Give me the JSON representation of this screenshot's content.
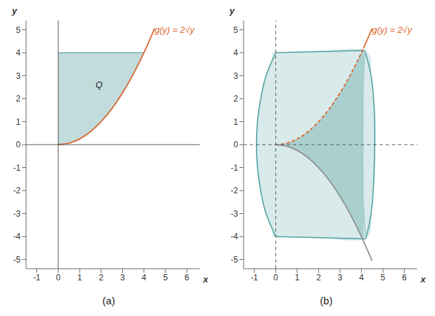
{
  "chart_data": [
    {
      "type": "area",
      "title": "(a)",
      "xlabel": "x",
      "ylabel": "y",
      "xlim": [
        -1.5,
        6.6
      ],
      "ylim": [
        -5.4,
        5.4
      ],
      "xticks": [
        -1,
        0,
        1,
        2,
        3,
        4,
        5,
        6
      ],
      "yticks": [
        -5,
        -4,
        -3,
        -2,
        -1,
        0,
        1,
        2,
        3,
        4,
        5
      ],
      "grid": false,
      "series": [
        {
          "type": "area",
          "color": "#c2dcdc",
          "line_style": "solid",
          "x": [
            0,
            0.5,
            1,
            1.5,
            2,
            2.5,
            3,
            3.5,
            4
          ],
          "lower": [
            0,
            0.06,
            0.25,
            0.56,
            1,
            1.56,
            2.25,
            3.06,
            4
          ],
          "values": [
            4,
            4,
            4,
            4,
            4,
            4,
            4,
            4,
            4
          ]
        },
        {
          "type": "line",
          "color": "#e0662e",
          "line_style": "solid",
          "x": [
            0,
            0.5,
            1,
            1.5,
            2,
            2.5,
            3,
            3.5,
            4,
            4.5
          ],
          "values": [
            0,
            0.06,
            0.25,
            0.56,
            1,
            1.56,
            2.25,
            3.06,
            4,
            5.06
          ]
        }
      ],
      "annotations": [
        {
          "text": "Q",
          "x": 1.55,
          "y": 2.6,
          "color": "#222222"
        },
        {
          "text": "g(y) = 2√y",
          "x": 4.3,
          "y": 5.0,
          "color": "#e0662e"
        }
      ]
    },
    {
      "type": "area",
      "title": "(b)",
      "xlabel": "x",
      "ylabel": "y",
      "xlim": [
        -1.5,
        6.6
      ],
      "ylim": [
        -5.4,
        5.4
      ],
      "xticks": [
        -1,
        0,
        1,
        2,
        3,
        4,
        5,
        6
      ],
      "yticks": [
        -5,
        -4,
        -3,
        -2,
        -1,
        0,
        1,
        2,
        3,
        4,
        5
      ],
      "grid": false,
      "series": [
        {
          "type": "area",
          "color": "#d8eaea",
          "x": [
            -0.9,
            -0.85,
            -0.7,
            -0.45,
            -0.15,
            0,
            2,
            4.15,
            4.45,
            4.6,
            4.62
          ],
          "lower": [
            0,
            -1,
            -2,
            -3,
            -3.9,
            -4,
            -4.05,
            -4.1,
            -3,
            -1.5,
            0
          ],
          "values": [
            0,
            1,
            2,
            3,
            3.9,
            4,
            4.05,
            4.1,
            3,
            1.5,
            0
          ]
        },
        {
          "type": "area",
          "color": "#a9cfcf",
          "x": [
            0,
            0.5,
            1,
            1.5,
            2,
            2.5,
            3,
            3.5,
            4,
            4.1
          ],
          "lower": [
            0,
            -0.06,
            -0.25,
            -0.56,
            -1,
            -1.56,
            -2.25,
            -3.06,
            -4,
            -4.2
          ],
          "values": [
            0,
            0.06,
            0.25,
            0.56,
            1,
            1.56,
            2.25,
            3.06,
            4,
            4.2
          ]
        },
        {
          "type": "line",
          "color": "#5fa8a8",
          "line_style": "solid",
          "x": [
            0,
            -0.45,
            -0.7,
            -0.85,
            -0.9,
            -0.85,
            -0.7,
            -0.45,
            0
          ],
          "values": [
            4,
            3,
            2,
            1,
            0,
            -1,
            -2,
            -3,
            -4
          ]
        },
        {
          "type": "line",
          "color": "#5fa8a8",
          "line_style": "solid",
          "x": [
            0,
            4.15
          ],
          "values": [
            4,
            4.1
          ]
        },
        {
          "type": "line",
          "color": "#5fa8a8",
          "line_style": "solid",
          "x": [
            0,
            4.2
          ],
          "values": [
            -4,
            -4.1
          ]
        },
        {
          "type": "line",
          "color": "#5fa8a8",
          "line_style": "solid",
          "x": [
            4.15,
            4.45,
            4.6,
            4.62,
            4.55,
            4.4,
            4.2
          ],
          "values": [
            4.1,
            3,
            1.5,
            0,
            -2,
            -3.3,
            -4.1
          ]
        },
        {
          "type": "line",
          "color": "#a8cccc",
          "line_style": "solid",
          "x": [
            4.15,
            4.05,
            4.0,
            4.05,
            4.2
          ],
          "values": [
            4.1,
            2,
            0,
            -2,
            -4.1
          ]
        },
        {
          "type": "line",
          "color": "#e0662e",
          "line_style": "dashed",
          "x": [
            0,
            0.5,
            1,
            1.5,
            2,
            2.5,
            3,
            3.5,
            4,
            4.1
          ],
          "values": [
            0,
            0.06,
            0.25,
            0.56,
            1,
            1.56,
            2.25,
            3.06,
            4,
            4.2
          ]
        },
        {
          "type": "line",
          "color": "#e0662e",
          "line_style": "solid",
          "x": [
            4.1,
            4.5
          ],
          "values": [
            4.2,
            5.06
          ]
        },
        {
          "type": "line",
          "color": "#8f8f8f",
          "line_style": "solid",
          "x": [
            0,
            0.5,
            1,
            1.5,
            2,
            2.5,
            3,
            3.5,
            4,
            4.1,
            4.5
          ],
          "values": [
            0,
            -0.06,
            -0.25,
            -0.56,
            -1,
            -1.56,
            -2.25,
            -3.06,
            -4,
            -4.2,
            -5.06
          ]
        }
      ],
      "annotations": [
        {
          "text": "g(y) = 2√y",
          "x": 4.3,
          "y": 5.0,
          "color": "#e0662e"
        }
      ]
    }
  ]
}
